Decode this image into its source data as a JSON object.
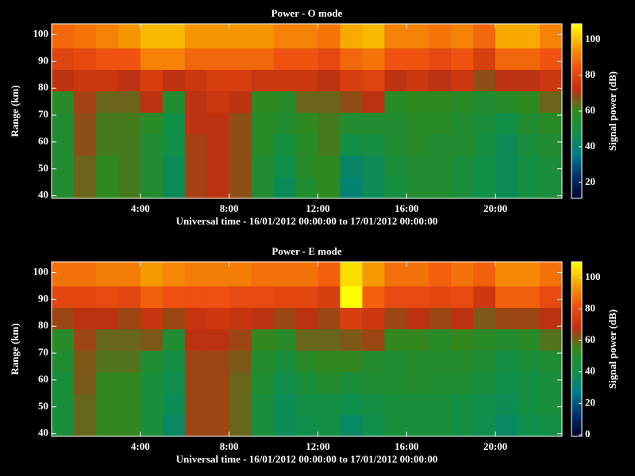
{
  "chart_data": [
    {
      "type": "heatmap",
      "title": "Power - O mode",
      "xlabel": "Universal time - 16/01/2012 00:00:00 to 17/01/2012 00:00:00",
      "ylabel": "Range (km)",
      "colorbar_label": "Signal power (dB)",
      "x": [
        0,
        1,
        2,
        3,
        4,
        5,
        6,
        7,
        8,
        9,
        10,
        11,
        12,
        13,
        14,
        15,
        16,
        17,
        18,
        19,
        20,
        21,
        22,
        23
      ],
      "y": [
        39,
        47,
        55,
        63,
        71,
        79,
        87,
        95,
        104
      ],
      "z": [
        [
          55,
          65,
          60,
          62,
          55,
          45,
          70,
          72,
          68,
          55,
          45,
          55,
          60,
          40,
          45,
          50,
          55,
          55,
          52,
          48,
          45,
          50,
          52
        ],
        [
          55,
          65,
          60,
          62,
          55,
          45,
          70,
          72,
          68,
          55,
          48,
          58,
          60,
          42,
          45,
          52,
          55,
          55,
          52,
          48,
          45,
          50,
          52
        ],
        [
          55,
          68,
          62,
          62,
          55,
          48,
          70,
          72,
          68,
          58,
          50,
          58,
          62,
          48,
          50,
          55,
          58,
          55,
          55,
          50,
          45,
          52,
          55
        ],
        [
          55,
          68,
          62,
          62,
          58,
          48,
          72,
          72,
          68,
          58,
          55,
          60,
          62,
          55,
          55,
          55,
          58,
          58,
          55,
          52,
          48,
          55,
          58
        ],
        [
          58,
          70,
          65,
          65,
          72,
          55,
          72,
          75,
          72,
          60,
          58,
          65,
          65,
          68,
          72,
          58,
          60,
          60,
          58,
          55,
          58,
          60,
          65
        ],
        [
          72,
          75,
          75,
          72,
          78,
          72,
          75,
          78,
          78,
          75,
          75,
          75,
          72,
          78,
          80,
          72,
          75,
          72,
          75,
          68,
          72,
          72,
          75
        ],
        [
          80,
          82,
          85,
          85,
          92,
          92,
          88,
          88,
          88,
          88,
          85,
          85,
          82,
          88,
          90,
          85,
          85,
          82,
          85,
          78,
          88,
          88,
          85
        ],
        [
          88,
          90,
          92,
          95,
          100,
          100,
          95,
          95,
          95,
          95,
          92,
          92,
          90,
          98,
          100,
          92,
          92,
          90,
          92,
          88,
          98,
          98,
          92
        ]
      ],
      "xlim": [
        0,
        23
      ],
      "ylim": [
        39,
        104
      ],
      "xticks": [
        {
          "value": 4,
          "label": "4:00"
        },
        {
          "value": 8,
          "label": "8:00"
        },
        {
          "value": 12,
          "label": "12:00"
        },
        {
          "value": 16,
          "label": "16:00"
        },
        {
          "value": 20,
          "label": "20:00"
        }
      ],
      "yticks": [
        40,
        50,
        60,
        70,
        80,
        90,
        100
      ],
      "clim": [
        11,
        109
      ],
      "cticks": [
        20,
        40,
        60,
        80,
        100
      ],
      "colorscale": [
        "#000028",
        "#00306a",
        "#007a8a",
        "#109048",
        "#2e8a20",
        "#c03010",
        "#f05010",
        "#f8a000",
        "#ffff00"
      ]
    },
    {
      "type": "heatmap",
      "title": "Power - E mode",
      "xlabel": "Universal time - 16/01/2012 00:00:00 to 17/01/2012 00:00:00",
      "ylabel": "Range (km)",
      "colorbar_label": "Signal power (dB)",
      "x": [
        0,
        1,
        2,
        3,
        4,
        5,
        6,
        7,
        8,
        9,
        10,
        11,
        12,
        13,
        14,
        15,
        16,
        17,
        18,
        19,
        20,
        21,
        22,
        23
      ],
      "y": [
        39,
        47,
        55,
        63,
        71,
        79,
        87,
        95,
        104
      ],
      "z": [
        [
          45,
          60,
          55,
          55,
          45,
          35,
          65,
          65,
          60,
          45,
          38,
          40,
          42,
          35,
          40,
          45,
          45,
          45,
          42,
          40,
          35,
          40,
          42
        ],
        [
          45,
          60,
          55,
          55,
          45,
          38,
          65,
          65,
          60,
          45,
          38,
          42,
          42,
          40,
          42,
          45,
          45,
          45,
          42,
          40,
          38,
          42,
          45
        ],
        [
          45,
          62,
          55,
          55,
          45,
          40,
          65,
          65,
          60,
          48,
          40,
          45,
          50,
          45,
          48,
          48,
          50,
          48,
          48,
          45,
          40,
          42,
          45
        ],
        [
          48,
          62,
          58,
          58,
          48,
          42,
          65,
          65,
          62,
          50,
          45,
          52,
          55,
          55,
          50,
          48,
          50,
          50,
          50,
          48,
          42,
          45,
          48
        ],
        [
          52,
          65,
          60,
          60,
          62,
          48,
          68,
          68,
          65,
          55,
          52,
          60,
          60,
          62,
          65,
          55,
          55,
          52,
          55,
          52,
          50,
          52,
          58
        ],
        [
          65,
          68,
          68,
          65,
          70,
          65,
          70,
          72,
          70,
          68,
          65,
          68,
          65,
          75,
          72,
          65,
          68,
          65,
          68,
          62,
          65,
          65,
          68
        ],
        [
          78,
          78,
          80,
          78,
          85,
          82,
          82,
          82,
          80,
          80,
          78,
          78,
          75,
          110,
          85,
          80,
          80,
          78,
          80,
          72,
          85,
          85,
          80
        ],
        [
          88,
          88,
          90,
          90,
          95,
          92,
          90,
          90,
          90,
          88,
          88,
          88,
          85,
          105,
          95,
          88,
          88,
          85,
          88,
          85,
          92,
          92,
          88
        ]
      ],
      "xlim": [
        0,
        23
      ],
      "ylim": [
        39,
        104
      ],
      "xticks": [
        {
          "value": 4,
          "label": "4:00"
        },
        {
          "value": 8,
          "label": "8:00"
        },
        {
          "value": 12,
          "label": "12:00"
        },
        {
          "value": 16,
          "label": "16:00"
        },
        {
          "value": 20,
          "label": "20:00"
        }
      ],
      "yticks": [
        40,
        50,
        60,
        70,
        80,
        90,
        100
      ],
      "clim": [
        -1,
        110
      ],
      "cticks": [
        0,
        20,
        40,
        60,
        80,
        100
      ],
      "colorscale": [
        "#000028",
        "#00306a",
        "#007a8a",
        "#109048",
        "#2e8a20",
        "#c03010",
        "#f05010",
        "#f8a000",
        "#ffff00"
      ]
    }
  ]
}
